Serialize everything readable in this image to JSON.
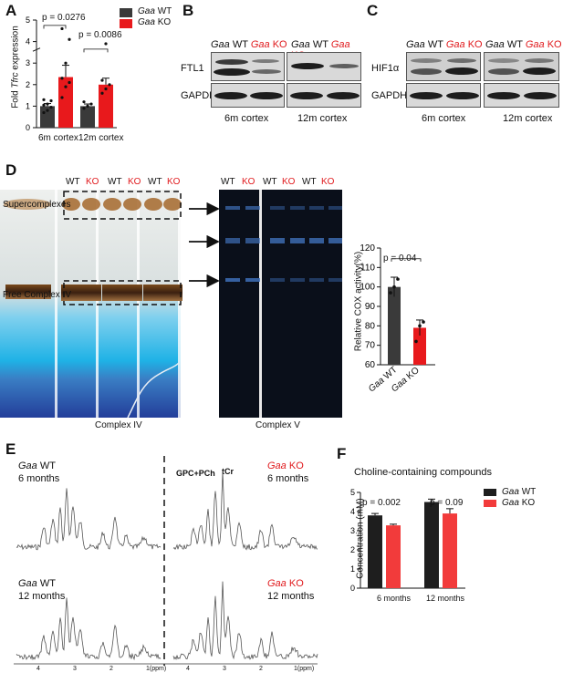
{
  "panels": {
    "A": "A",
    "B": "B",
    "C": "C",
    "D": "D",
    "E": "E",
    "F": "F"
  },
  "panel_a": {
    "ylabel": "Fold Tfrc expression",
    "ylabel_italic": "Tfrc",
    "ylabel_pre": "Fold ",
    "ylabel_post": " expression",
    "yticks": [
      "0",
      "1",
      "2",
      "3",
      "4",
      "5"
    ],
    "pvalues": [
      "p = 0.0276",
      "p = 0.0086"
    ],
    "groups": [
      "6m cortex",
      "12m cortex"
    ],
    "legend": [
      {
        "gene": "Gaa",
        "label": "WT",
        "color": "#3a3a3a"
      },
      {
        "gene": "Gaa",
        "label": "KO",
        "color": "#e8191c"
      }
    ]
  },
  "chart_data": [
    {
      "type": "bar",
      "panel": "A",
      "ylabel": "Fold Tfrc expression",
      "categories": [
        "6m cortex",
        "12m cortex"
      ],
      "series": [
        {
          "name": "Gaa WT",
          "values": [
            1.0,
            1.0
          ],
          "errors": [
            0.12,
            0.1
          ]
        },
        {
          "name": "Gaa KO",
          "values": [
            2.35,
            2.0
          ],
          "errors": [
            0.55,
            0.3
          ]
        }
      ],
      "ylim": [
        0,
        5
      ],
      "pvalues": [
        "p = 0.0276",
        "p = 0.0086"
      ]
    },
    {
      "type": "bar",
      "panel": "D",
      "ylabel": "Relative COX activity(%)",
      "categories": [
        "Gaa WT",
        "Gaa KO"
      ],
      "values": [
        100,
        79
      ],
      "errors": [
        5,
        4
      ],
      "colors": [
        "#3a3a3a",
        "#e8191c"
      ],
      "ylim": [
        60,
        120
      ],
      "yticks": [
        60,
        70,
        80,
        90,
        100,
        110,
        120
      ],
      "pvalue": "p = 0.04"
    },
    {
      "type": "bar",
      "panel": "F",
      "title": "Choline-containing compounds",
      "ylabel": "Concentration (mM)",
      "categories": [
        "6 months",
        "12 months"
      ],
      "series": [
        {
          "name": "Gaa WT",
          "values": [
            3.8,
            4.5
          ],
          "errors": [
            0.1,
            0.15
          ]
        },
        {
          "name": "Gaa KO",
          "values": [
            3.28,
            3.9
          ],
          "errors": [
            0.06,
            0.25
          ]
        }
      ],
      "ylim": [
        0,
        5
      ],
      "yticks": [
        0,
        1,
        2,
        3,
        4,
        5
      ],
      "pvalues": [
        "p = 0.002",
        "p = 0.09"
      ]
    }
  ],
  "panel_b": {
    "header_gene": "Gaa",
    "wt": "WT",
    "ko": "KO",
    "rows": [
      "FTL1",
      "GAPDH"
    ],
    "groups": [
      "6m cortex",
      "12m cortex"
    ]
  },
  "panel_c": {
    "header_gene": "Gaa",
    "wt": "WT",
    "ko": "KO",
    "rows": [
      "HIF1α",
      "GAPDH"
    ],
    "groups": [
      "6m cortex",
      "12m cortex"
    ]
  },
  "panel_d": {
    "lane_labels": [
      "WT",
      "KO",
      "WT",
      "KO",
      "WT",
      "KO"
    ],
    "lane_labels_v": [
      "WT",
      "KO",
      "WT",
      "KO",
      "WT",
      "KO"
    ],
    "supercomplexes": "Supercomplexes",
    "free_complex": "Free Complex IV",
    "complex_iv": "Complex IV",
    "complex_v": "Complex V"
  },
  "panel_e": {
    "tl": {
      "gene": "Gaa",
      "genotype": "WT",
      "age": "6 months"
    },
    "tr": {
      "gene": "Gaa",
      "genotype": "KO",
      "age": "6 months"
    },
    "bl": {
      "gene": "Gaa",
      "genotype": "WT",
      "age": "12 months"
    },
    "br": {
      "gene": "Gaa",
      "genotype": "KO",
      "age": "12 months"
    },
    "peak1": "GPC+PCh",
    "peak2": "tCr",
    "axis_ticks": [
      "4",
      "3",
      "2",
      "1(ppm)"
    ]
  },
  "panel_f": {
    "legend": [
      {
        "gene": "Gaa",
        "label": "WT",
        "color": "#1e1e1e"
      },
      {
        "gene": "Gaa",
        "label": "KO",
        "color": "#f23b3b"
      }
    ]
  }
}
